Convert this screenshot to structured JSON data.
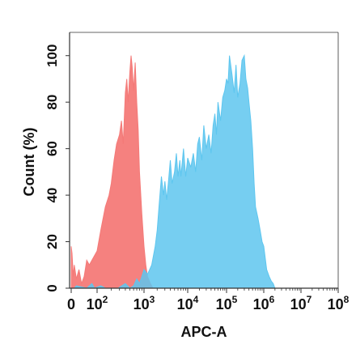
{
  "chart_data": {
    "type": "area",
    "xlabel": "APC-A",
    "ylabel": "Count  (%)",
    "x_scale": "log",
    "x_ticks": [
      {
        "base": "0",
        "exp": ""
      },
      {
        "base": "10",
        "exp": "2"
      },
      {
        "base": "10",
        "exp": "3"
      },
      {
        "base": "10",
        "exp": "4"
      },
      {
        "base": "10",
        "exp": "5"
      },
      {
        "base": "10",
        "exp": "6"
      },
      {
        "base": "10",
        "exp": "7"
      },
      {
        "base": "10",
        "exp": "8"
      }
    ],
    "y_ticks": [
      "0",
      "20",
      "40",
      "60",
      "80",
      "100"
    ],
    "ylim": [
      0,
      110
    ],
    "grid": false,
    "series": [
      {
        "color": "#f47a78",
        "x": [
          0,
          3,
          8,
          12,
          20,
          30,
          40,
          50,
          60,
          70,
          80,
          90,
          100,
          120,
          150,
          180,
          200,
          230,
          260,
          300,
          330,
          360,
          400,
          430,
          460,
          500,
          530,
          560,
          600,
          650,
          700,
          750,
          800,
          900,
          1000,
          1100,
          1200,
          1400,
          1600
        ],
        "values": [
          18,
          15,
          5,
          10,
          4,
          8,
          2,
          5,
          12,
          10,
          12,
          14,
          16,
          25,
          35,
          40,
          45,
          55,
          62,
          66,
          72,
          62,
          84,
          90,
          80,
          93,
          100,
          95,
          85,
          97,
          80,
          68,
          50,
          32,
          18,
          10,
          5,
          2,
          0
        ]
      },
      {
        "color": "#5ec6ef",
        "x": [
          12,
          20,
          60,
          80,
          90,
          120,
          150,
          200,
          280,
          400,
          500,
          600,
          700,
          800,
          900,
          1000,
          1200,
          1500,
          1800,
          2000,
          2200,
          2500,
          2800,
          3000,
          3300,
          3600,
          4000,
          4400,
          5000,
          5500,
          6000,
          6600,
          7000,
          8000,
          9000,
          10000,
          12000,
          14000,
          16000,
          18000,
          20000,
          23000,
          26000,
          30000,
          35000,
          40000,
          45000,
          50000,
          55000,
          60000,
          70000,
          80000,
          90000,
          100000,
          110000,
          120000,
          140000,
          160000,
          180000,
          200000,
          230000,
          260000,
          300000,
          330000,
          370000,
          400000,
          450000,
          500000,
          550000,
          600000,
          700000,
          800000,
          900000,
          1000000,
          1200000,
          1400000,
          1600000,
          1800000,
          2000000,
          2500000,
          3000000,
          4000000
        ],
        "values": [
          0,
          1,
          0,
          2,
          0,
          1,
          0,
          0,
          0,
          2,
          0,
          1,
          4,
          2,
          5,
          8,
          6,
          10,
          18,
          25,
          35,
          48,
          40,
          46,
          38,
          45,
          55,
          45,
          50,
          58,
          48,
          55,
          48,
          60,
          48,
          56,
          52,
          58,
          50,
          62,
          65,
          55,
          70,
          60,
          66,
          58,
          70,
          75,
          66,
          80,
          72,
          82,
          85,
          90,
          88,
          100,
          92,
          84,
          96,
          82,
          88,
          98,
          100,
          90,
          86,
          80,
          72,
          60,
          45,
          35,
          30,
          25,
          20,
          18,
          8,
          5,
          3,
          2,
          0,
          0,
          0,
          0
        ]
      }
    ]
  }
}
